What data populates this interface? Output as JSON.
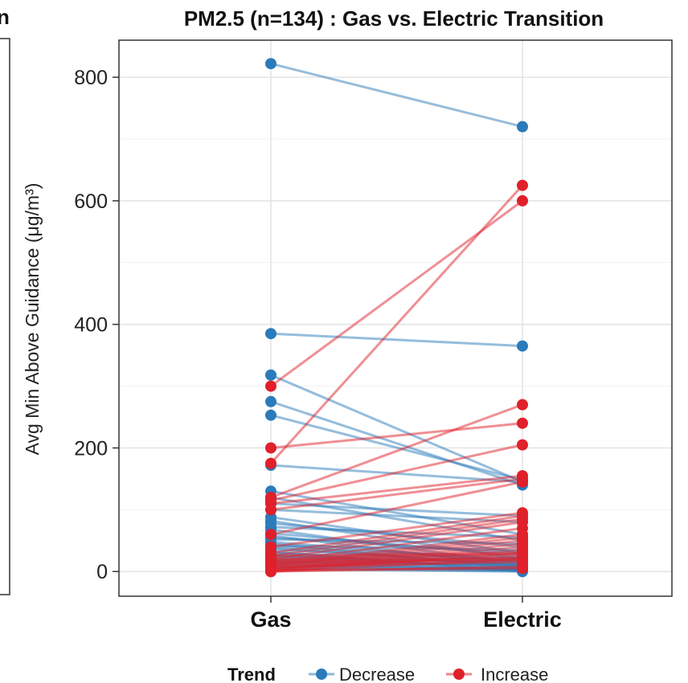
{
  "chart_data": {
    "type": "line",
    "subtype": "paired-slope",
    "title": "PM2.5 (n=134) : Gas vs. Electric Transition",
    "ylabel": "Avg Min Above Guidance (μg/m³)",
    "categories": [
      "Gas",
      "Electric"
    ],
    "ylim": [
      -40,
      860
    ],
    "yticks": [
      0,
      200,
      400,
      600,
      800
    ],
    "grid": true,
    "legend": {
      "title": "Trend",
      "position": "bottom",
      "entries": [
        {
          "name": "Decrease",
          "color": "#2b7bba"
        },
        {
          "name": "Increase",
          "color": "#e0202a"
        }
      ]
    },
    "series": [
      {
        "name": "Decrease",
        "pairs": [
          [
            822,
            720
          ],
          [
            385,
            365
          ],
          [
            318,
            145
          ],
          [
            275,
            140
          ],
          [
            253,
            148
          ],
          [
            172,
            145
          ],
          [
            130,
            60
          ],
          [
            120,
            50
          ],
          [
            110,
            90
          ],
          [
            100,
            80
          ],
          [
            88,
            30
          ],
          [
            82,
            20
          ],
          [
            78,
            40
          ],
          [
            72,
            55
          ],
          [
            68,
            12
          ],
          [
            62,
            25
          ],
          [
            58,
            8
          ],
          [
            55,
            30
          ],
          [
            52,
            45
          ],
          [
            48,
            15
          ],
          [
            45,
            5
          ],
          [
            42,
            35
          ],
          [
            40,
            22
          ],
          [
            38,
            10
          ],
          [
            35,
            20
          ],
          [
            32,
            0
          ],
          [
            30,
            18
          ],
          [
            28,
            12
          ],
          [
            26,
            5
          ],
          [
            24,
            15
          ],
          [
            22,
            10
          ],
          [
            20,
            8
          ],
          [
            18,
            3
          ],
          [
            16,
            10
          ],
          [
            14,
            5
          ],
          [
            12,
            2
          ],
          [
            10,
            4
          ],
          [
            8,
            2
          ],
          [
            6,
            1
          ],
          [
            4,
            0
          ]
        ]
      },
      {
        "name": "Increase",
        "pairs": [
          [
            300,
            600
          ],
          [
            175,
            625
          ],
          [
            200,
            240
          ],
          [
            120,
            270
          ],
          [
            115,
            205
          ],
          [
            110,
            155
          ],
          [
            100,
            150
          ],
          [
            60,
            145
          ],
          [
            40,
            95
          ],
          [
            30,
            90
          ],
          [
            25,
            85
          ],
          [
            20,
            80
          ],
          [
            15,
            70
          ],
          [
            12,
            60
          ],
          [
            10,
            55
          ],
          [
            8,
            50
          ],
          [
            5,
            45
          ],
          [
            3,
            40
          ],
          [
            2,
            35
          ],
          [
            0,
            30
          ],
          [
            0,
            20
          ],
          [
            5,
            25
          ],
          [
            8,
            15
          ],
          [
            12,
            18
          ],
          [
            15,
            20
          ],
          [
            18,
            22
          ],
          [
            20,
            28
          ],
          [
            25,
            30
          ],
          [
            0,
            8
          ],
          [
            2,
            5
          ]
        ]
      }
    ]
  }
}
